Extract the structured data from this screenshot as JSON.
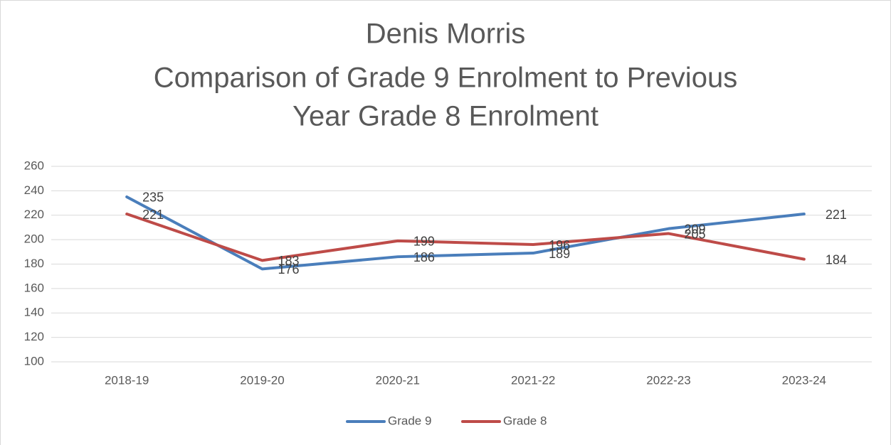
{
  "chart_data": {
    "type": "line",
    "title": [
      "Denis Morris",
      "Comparison of Grade 9 Enrolment to Previous",
      "Year Grade 8 Enrolment"
    ],
    "categories": [
      "2018-19",
      "2019-20",
      "2020-21",
      "2021-22",
      "2022-23",
      "2023-24"
    ],
    "series": [
      {
        "name": "Grade 9",
        "color": "#4a7ebb",
        "values": [
          235,
          176,
          186,
          189,
          209,
          221
        ]
      },
      {
        "name": "Grade 8",
        "color": "#be4b48",
        "values": [
          221,
          183,
          199,
          196,
          205,
          184
        ]
      }
    ],
    "ylim": [
      100,
      260
    ],
    "yticks": [
      100,
      120,
      140,
      160,
      180,
      200,
      220,
      240,
      260
    ],
    "grid": true,
    "legend": "bottom"
  }
}
